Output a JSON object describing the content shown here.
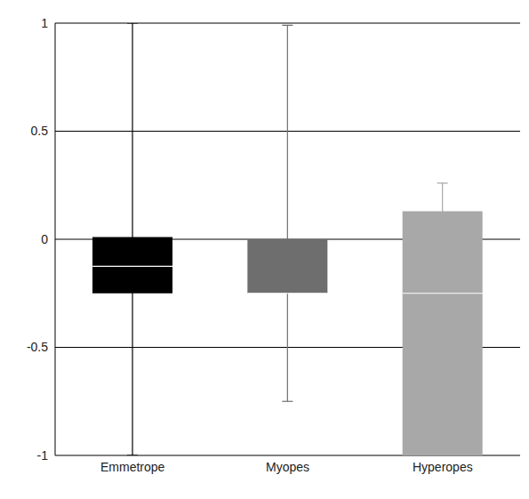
{
  "chart_data": {
    "type": "box",
    "categories": [
      "Emmetrope",
      "Myopes",
      "Hyperopes"
    ],
    "boxes": [
      {
        "min": -1,
        "q1": -0.25,
        "median": -0.125,
        "q3": 0.01,
        "max": 1
      },
      {
        "min": -0.75,
        "q1": -0.25,
        "median": -0.25,
        "q3": 0,
        "max": 0.99
      },
      {
        "min": -1,
        "q1": -1,
        "median": -0.25,
        "q3": 0.13,
        "max": 0.26
      }
    ],
    "colors": [
      "#000000",
      "#6e6e6e",
      "#a8a8a8"
    ],
    "ylim": [
      -1,
      1
    ],
    "yticks": [
      -1,
      -0.5,
      0,
      0.5,
      1
    ],
    "grid": true
  }
}
